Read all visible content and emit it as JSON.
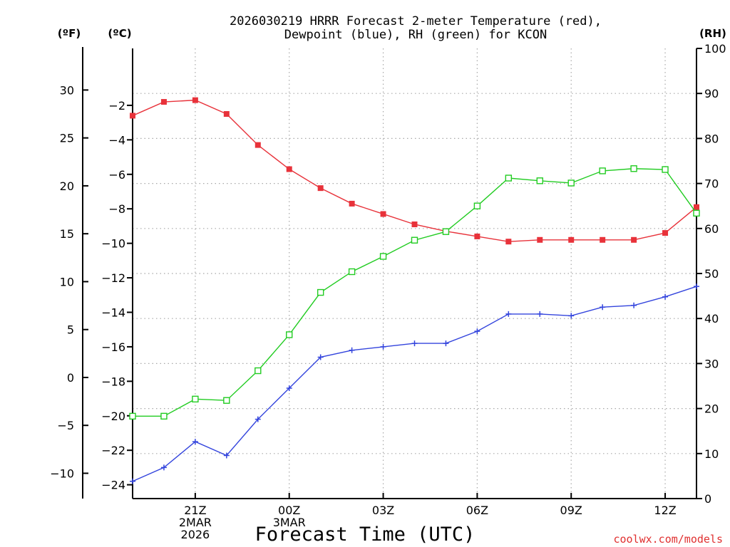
{
  "chart_data": {
    "type": "line",
    "title_lines": [
      "2026030219 HRRR Forecast 2-meter Temperature (red),",
      "Dewpoint (blue), RH (green) for KCON"
    ],
    "xlabel": "Forecast Time (UTC)",
    "credit": "coolwx.com/models",
    "x_hours": [
      0,
      1,
      2,
      3,
      4,
      5,
      6,
      7,
      8,
      9,
      10,
      11,
      12,
      13,
      14,
      15,
      16,
      17,
      18
    ],
    "x_range": [
      0,
      18
    ],
    "x_ticks": [
      {
        "hour": 2,
        "lines": [
          "21Z",
          "2MAR",
          "2026"
        ]
      },
      {
        "hour": 5,
        "lines": [
          "00Z",
          "3MAR"
        ]
      },
      {
        "hour": 8,
        "lines": [
          "03Z"
        ]
      },
      {
        "hour": 11,
        "lines": [
          "06Z"
        ]
      },
      {
        "hour": 14,
        "lines": [
          "09Z"
        ]
      },
      {
        "hour": 17,
        "lines": [
          "12Z"
        ]
      }
    ],
    "axes": {
      "celsius": {
        "label": "(ºC)",
        "range": [
          -24.8,
          1.3
        ],
        "ticks": [
          -2,
          -4,
          -6,
          -8,
          -10,
          -12,
          -14,
          -16,
          -18,
          -20,
          -22,
          -24
        ]
      },
      "fahrenheit": {
        "label": "(ºF)",
        "ticks": [
          30,
          25,
          20,
          15,
          10,
          5,
          0,
          -5,
          -10
        ]
      },
      "rh": {
        "label": "(RH)",
        "range": [
          0,
          100
        ],
        "ticks": [
          100,
          90,
          80,
          70,
          60,
          50,
          40,
          30,
          20,
          10,
          0
        ]
      }
    },
    "series": [
      {
        "name": "Temperature",
        "axis": "celsius",
        "color": "#e8323a",
        "marker": "filled-square",
        "values": [
          -2.6,
          -1.8,
          -1.7,
          -2.5,
          -4.3,
          -5.7,
          -6.8,
          -7.7,
          -8.3,
          -8.9,
          -9.3,
          -9.6,
          -9.9,
          -9.8,
          -9.8,
          -9.8,
          -9.8,
          -9.4,
          -7.9
        ]
      },
      {
        "name": "Dewpoint",
        "axis": "celsius",
        "color": "#3344dd",
        "marker": "plus",
        "values": [
          -23.8,
          -23.0,
          -21.5,
          -22.3,
          -20.2,
          -18.4,
          -16.6,
          -16.2,
          -16.0,
          -15.8,
          -15.8,
          -15.1,
          -14.1,
          -14.1,
          -14.2,
          -13.7,
          -13.6,
          -13.1,
          -12.5
        ]
      },
      {
        "name": "RH",
        "axis": "rh",
        "color": "#22cc22",
        "marker": "open-square",
        "values": [
          18.3,
          18.3,
          22.1,
          21.8,
          28.4,
          36.4,
          45.8,
          50.4,
          53.8,
          57.4,
          59.3,
          65.0,
          71.2,
          70.6,
          70.1,
          72.8,
          73.3,
          73.1,
          63.4
        ]
      }
    ]
  }
}
